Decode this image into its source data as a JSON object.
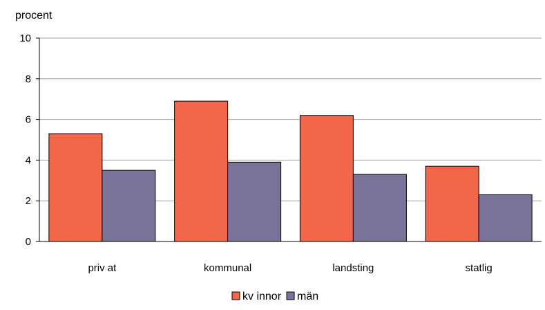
{
  "chart_data": {
    "type": "bar",
    "ylabel": "procent",
    "ylim": [
      0,
      10
    ],
    "yticks": [
      0,
      2,
      4,
      6,
      8,
      10
    ],
    "categories": [
      "priv at",
      "kommunal",
      "landsting",
      "statlig"
    ],
    "series": [
      {
        "name": "kv innor",
        "color": "#f2674a",
        "values": [
          5.3,
          6.9,
          6.2,
          3.7
        ]
      },
      {
        "name": "män",
        "color": "#7a7399",
        "values": [
          3.5,
          3.9,
          3.3,
          2.3
        ]
      }
    ],
    "grid": true,
    "legend": "bottom-center"
  }
}
